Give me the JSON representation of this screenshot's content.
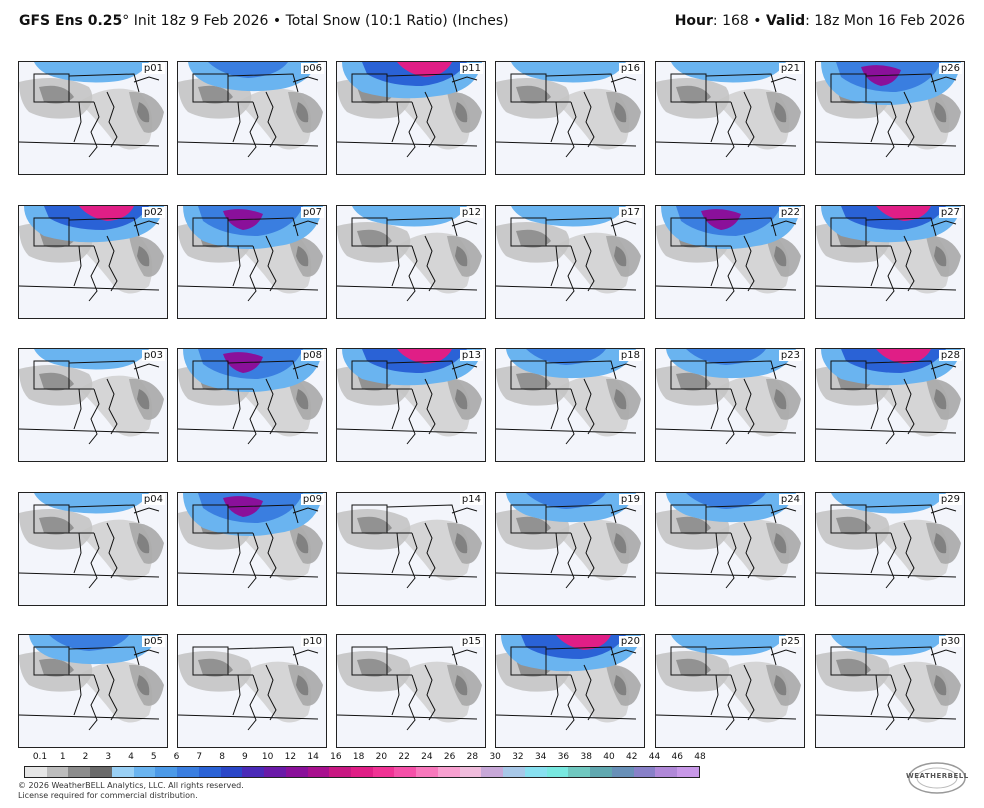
{
  "header": {
    "model": "GFS Ens 0.25",
    "degree": "°",
    "init": " Init 18z 9 Feb 2026",
    "sep": " • ",
    "field": "Total Snow (10:1 Ratio) (Inches)",
    "hour_label": "Hour",
    "hour_value": ": 168",
    "valid_label": "Valid",
    "valid_value": ": 18z Mon 16 Feb 2026"
  },
  "panels": [
    {
      "label": "p01",
      "col": 0,
      "row": 0,
      "snow": "light"
    },
    {
      "label": "p06",
      "col": 1,
      "row": 0,
      "snow": "medium"
    },
    {
      "label": "p11",
      "col": 2,
      "row": 0,
      "snow": "pink"
    },
    {
      "label": "p16",
      "col": 3,
      "row": 0,
      "snow": "light"
    },
    {
      "label": "p21",
      "col": 4,
      "row": 0,
      "snow": "light"
    },
    {
      "label": "p26",
      "col": 5,
      "row": 0,
      "snow": "heavy"
    },
    {
      "label": "p02",
      "col": 0,
      "row": 1,
      "snow": "pink"
    },
    {
      "label": "p07",
      "col": 1,
      "row": 1,
      "snow": "heavy"
    },
    {
      "label": "p12",
      "col": 2,
      "row": 1,
      "snow": "light"
    },
    {
      "label": "p17",
      "col": 3,
      "row": 1,
      "snow": "light"
    },
    {
      "label": "p22",
      "col": 4,
      "row": 1,
      "snow": "heavy"
    },
    {
      "label": "p27",
      "col": 5,
      "row": 1,
      "snow": "pink"
    },
    {
      "label": "p03",
      "col": 0,
      "row": 2,
      "snow": "light"
    },
    {
      "label": "p08",
      "col": 1,
      "row": 2,
      "snow": "heavy"
    },
    {
      "label": "p13",
      "col": 2,
      "row": 2,
      "snow": "pink"
    },
    {
      "label": "p18",
      "col": 3,
      "row": 2,
      "snow": "medium"
    },
    {
      "label": "p23",
      "col": 4,
      "row": 2,
      "snow": "medium"
    },
    {
      "label": "p28",
      "col": 5,
      "row": 2,
      "snow": "pink"
    },
    {
      "label": "p04",
      "col": 0,
      "row": 3,
      "snow": "light"
    },
    {
      "label": "p09",
      "col": 1,
      "row": 3,
      "snow": "heavy"
    },
    {
      "label": "p14",
      "col": 2,
      "row": 3,
      "snow": "none"
    },
    {
      "label": "p19",
      "col": 3,
      "row": 3,
      "snow": "medium"
    },
    {
      "label": "p24",
      "col": 4,
      "row": 3,
      "snow": "medium"
    },
    {
      "label": "p29",
      "col": 5,
      "row": 3,
      "snow": "light"
    },
    {
      "label": "p05",
      "col": 0,
      "row": 4,
      "snow": "medium"
    },
    {
      "label": "p10",
      "col": 1,
      "row": 4,
      "snow": "none"
    },
    {
      "label": "p15",
      "col": 2,
      "row": 4,
      "snow": "none"
    },
    {
      "label": "p20",
      "col": 3,
      "row": 4,
      "snow": "pink"
    },
    {
      "label": "p25",
      "col": 4,
      "row": 4,
      "snow": "light"
    },
    {
      "label": "p30",
      "col": 5,
      "row": 4,
      "snow": "light"
    }
  ],
  "scale": {
    "labels": [
      "0.1",
      "1",
      "2",
      "3",
      "4",
      "5",
      "6",
      "7",
      "8",
      "9",
      "10",
      "12",
      "14",
      "16",
      "18",
      "20",
      "22",
      "24",
      "26",
      "28",
      "30",
      "32",
      "34",
      "36",
      "38",
      "40",
      "42",
      "44",
      "46",
      "48"
    ],
    "colors": [
      "#e6e6e6",
      "#bdbdbd",
      "#8c8c8c",
      "#6a6a6a",
      "#9ad0f5",
      "#6ab4f0",
      "#4c9ae8",
      "#3a7ee0",
      "#2a62d6",
      "#2a46c8",
      "#4a2ab8",
      "#6a1aa8",
      "#8a109a",
      "#a8108e",
      "#c81882",
      "#e01e86",
      "#f03294",
      "#f550a8",
      "#f878bc",
      "#f8a0d0",
      "#f0bcdc",
      "#c8a8d8",
      "#a8c8e8",
      "#88e0f0",
      "#78e8e0",
      "#70c8c0",
      "#60a8b0",
      "#6890b8",
      "#8880c8",
      "#b088d8",
      "#c898e8"
    ]
  },
  "footer": {
    "copyright": "© 2026 WeatherBELL Analytics, LLC. All rights reserved.",
    "license": "License required for commercial distribution."
  },
  "logo": {
    "text": "WEATHERBELL"
  }
}
